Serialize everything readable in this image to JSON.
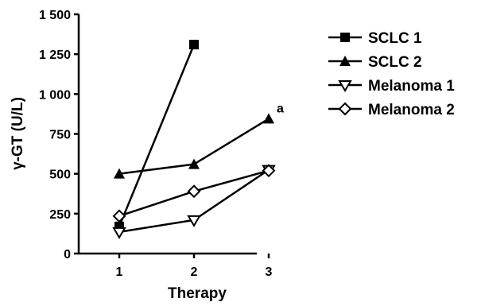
{
  "chart_data": {
    "type": "line",
    "title": "",
    "xlabel": "Therapy",
    "ylabel": "γ-GT (U/L)",
    "x": [
      1,
      2,
      3
    ],
    "xticks": [
      "1",
      "2",
      "3"
    ],
    "xlim": [
      0.6,
      3.4
    ],
    "ylim": [
      0,
      1500
    ],
    "yticks": [
      0,
      250,
      500,
      750,
      1000,
      1250,
      1500
    ],
    "ytick_labels": [
      "0",
      "250",
      "500",
      "750",
      "1 000",
      "1 250",
      "1 500"
    ],
    "grid": false,
    "legend_position": "right",
    "series": [
      {
        "name": "SCLC 1",
        "marker": "square",
        "x": [
          1,
          2
        ],
        "values": [
          170,
          1310
        ]
      },
      {
        "name": "SCLC 2",
        "marker": "triangle-up",
        "x": [
          1,
          2,
          3
        ],
        "values": [
          500,
          560,
          845
        ]
      },
      {
        "name": "Melanoma 1",
        "marker": "triangle-down-open",
        "x": [
          1,
          2,
          3
        ],
        "values": [
          135,
          210,
          525
        ]
      },
      {
        "name": "Melanoma 2",
        "marker": "diamond-open",
        "x": [
          1,
          2,
          3
        ],
        "values": [
          235,
          390,
          520
        ]
      }
    ],
    "annotations": [
      {
        "text": "a",
        "x": 3,
        "y": 845
      }
    ]
  }
}
